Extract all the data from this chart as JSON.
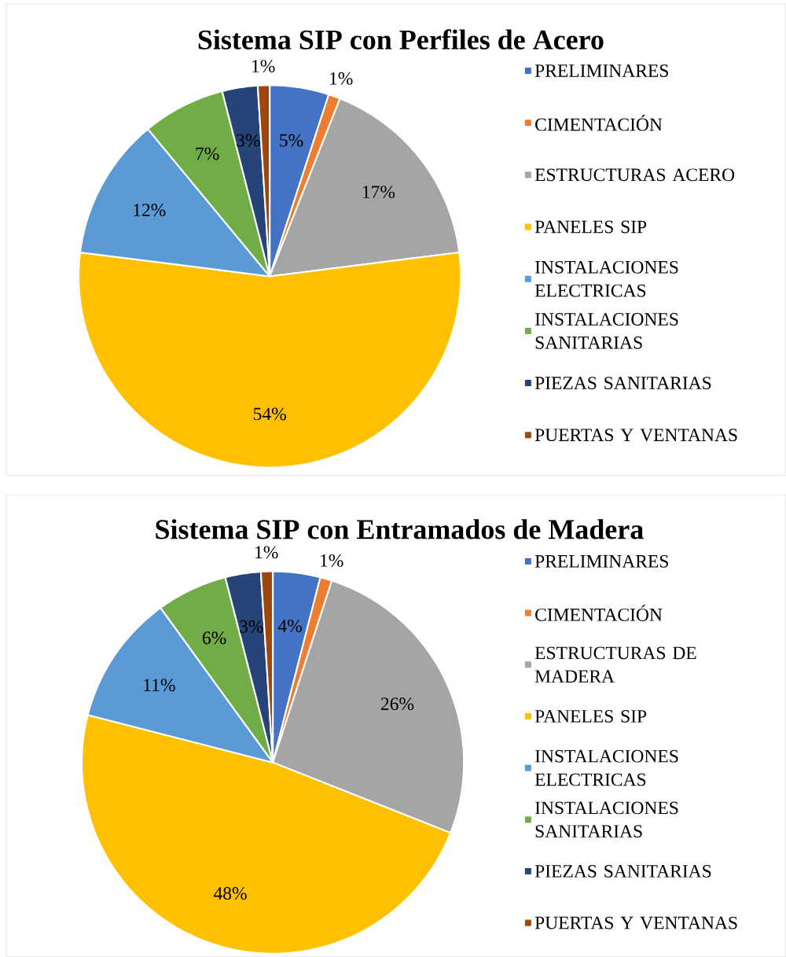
{
  "chart_data": [
    {
      "type": "pie",
      "title": "Sistema SIP con Perfiles de Acero",
      "categories": [
        "PRELIMINARES",
        "CIMENTACIÓN",
        "ESTRUCTURAS ACERO",
        "PANELES SIP",
        "INSTALACIONES ELECTRICAS",
        "INSTALACIONES SANITARIAS",
        "PIEZAS SANITARIAS",
        "PUERTAS Y VENTANAS"
      ],
      "values": [
        5,
        1,
        17,
        54,
        12,
        7,
        3,
        1
      ],
      "value_labels": [
        "5%",
        "1%",
        "17%",
        "54%",
        "12%",
        "7%",
        "3%",
        "1%"
      ],
      "colors": [
        "#4472c4",
        "#ed7d31",
        "#a5a5a5",
        "#ffc000",
        "#5b9bd5",
        "#70ad47",
        "#264478",
        "#9e480e"
      ],
      "legend": "right"
    },
    {
      "type": "pie",
      "title": "Sistema SIP con Entramados de Madera",
      "categories": [
        "PRELIMINARES",
        "CIMENTACIÓN",
        "ESTRUCTURAS DE MADERA",
        "PANELES SIP",
        "INSTALACIONES ELECTRICAS",
        "INSTALACIONES SANITARIAS",
        "PIEZAS SANITARIAS",
        "PUERTAS Y VENTANAS"
      ],
      "values": [
        4,
        1,
        26,
        48,
        11,
        6,
        3,
        1
      ],
      "value_labels": [
        "4%",
        "1%",
        "26%",
        "48%",
        "11%",
        "6%",
        "3%",
        "1%"
      ],
      "colors": [
        "#4472c4",
        "#ed7d31",
        "#a5a5a5",
        "#ffc000",
        "#5b9bd5",
        "#70ad47",
        "#264478",
        "#9e480e"
      ],
      "legend": "right"
    }
  ]
}
